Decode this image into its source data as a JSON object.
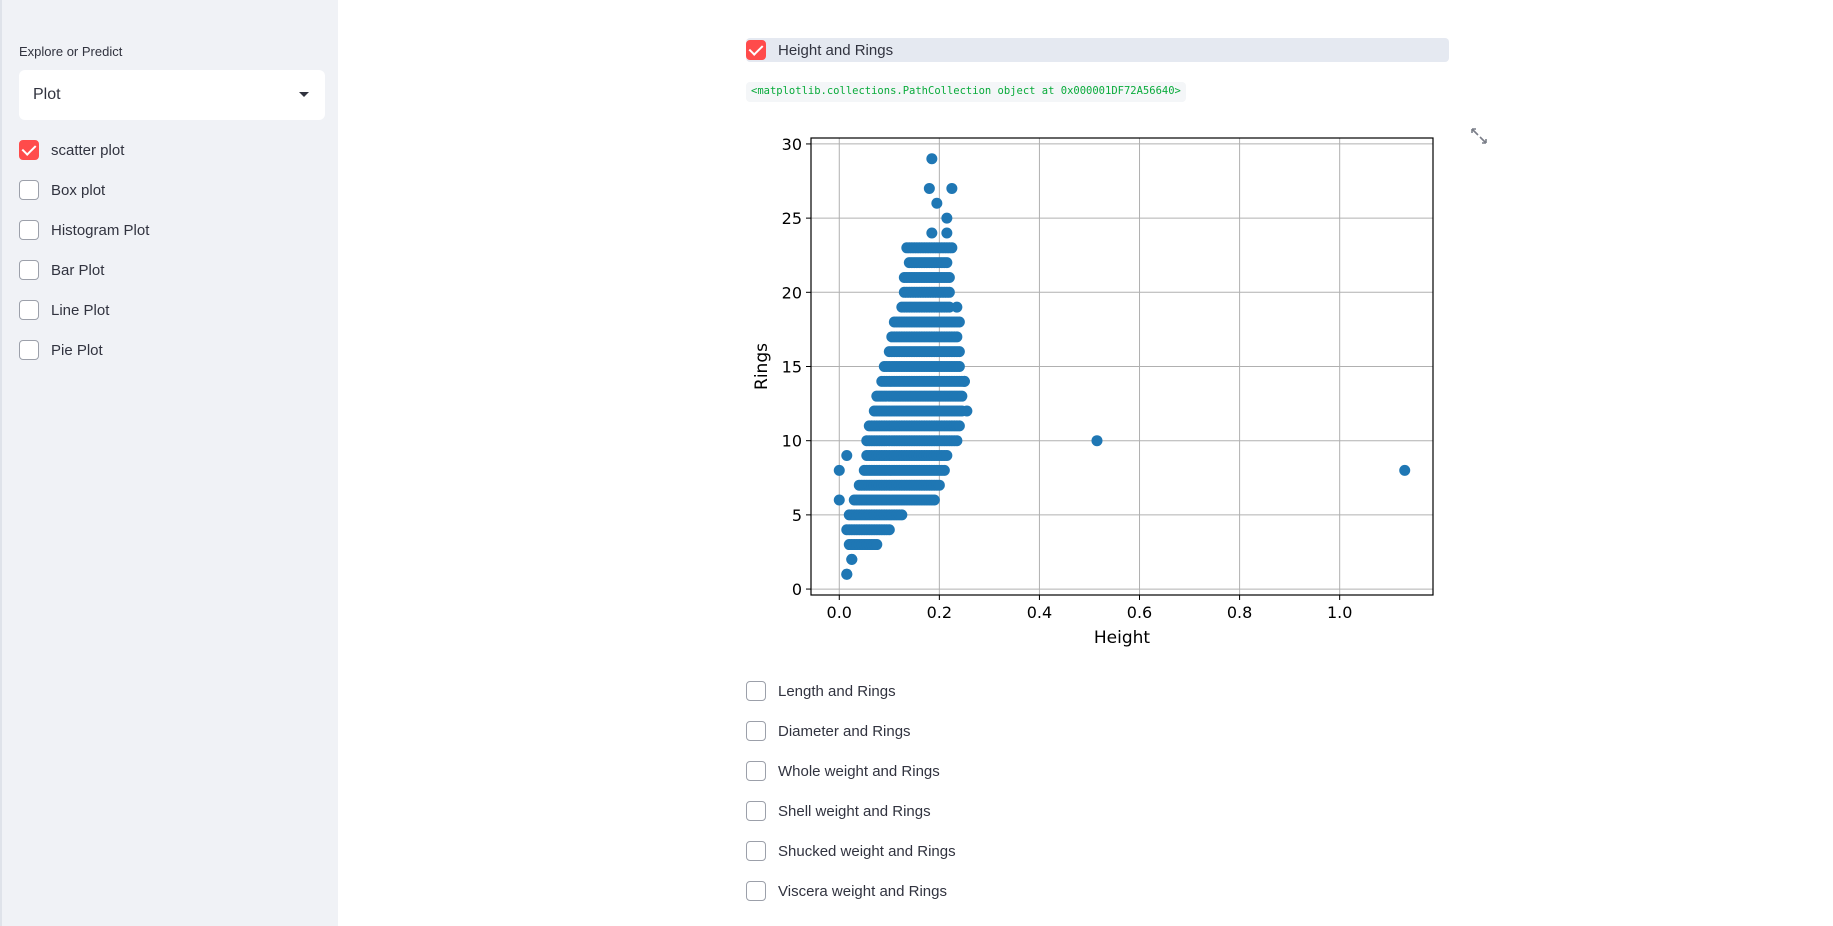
{
  "sidebar": {
    "label": "Explore or Predict",
    "select_value": "Plot",
    "plot_types": [
      {
        "label": "scatter plot",
        "checked": true
      },
      {
        "label": "Box plot",
        "checked": false
      },
      {
        "label": "Histogram Plot",
        "checked": false
      },
      {
        "label": "Bar Plot",
        "checked": false
      },
      {
        "label": "Line Plot",
        "checked": false
      },
      {
        "label": "Pie Plot",
        "checked": false
      }
    ]
  },
  "main": {
    "top_checkbox": {
      "label": "Height and Rings",
      "checked": true
    },
    "code_output": "<matplotlib.collections.PathCollection object at 0x000001DF72A56640>",
    "other_checkboxes": [
      {
        "label": "Length and Rings",
        "checked": false
      },
      {
        "label": "Diameter and Rings",
        "checked": false
      },
      {
        "label": "Whole weight and Rings",
        "checked": false
      },
      {
        "label": "Shell weight and Rings",
        "checked": false
      },
      {
        "label": "Shucked weight and Rings",
        "checked": false
      },
      {
        "label": "Viscera weight and Rings",
        "checked": false
      }
    ]
  },
  "colors": {
    "accent": "#ff4b4b",
    "point": "#1f77b4"
  },
  "chart_data": {
    "type": "scatter",
    "xlabel": "Height",
    "ylabel": "Rings",
    "xlim": [
      -0.0565,
      1.1865
    ],
    "ylim": [
      -0.4,
      30.4
    ],
    "xticks": [
      0.0,
      0.2,
      0.4,
      0.6,
      0.8,
      1.0
    ],
    "xtick_labels": [
      "0.0",
      "0.2",
      "0.4",
      "0.6",
      "0.8",
      "1.0"
    ],
    "yticks": [
      0,
      5,
      10,
      15,
      20,
      25,
      30
    ],
    "ytick_labels": [
      "0",
      "5",
      "10",
      "15",
      "20",
      "25",
      "30"
    ],
    "grid": true,
    "outliers": [
      [
        0.515,
        10
      ],
      [
        1.13,
        8
      ],
      [
        0.0,
        8
      ],
      [
        0.0,
        6
      ],
      [
        0.015,
        9
      ],
      [
        0.015,
        1
      ],
      [
        0.025,
        2
      ],
      [
        0.185,
        29
      ],
      [
        0.18,
        27
      ],
      [
        0.225,
        27
      ],
      [
        0.195,
        26
      ],
      [
        0.215,
        25
      ],
      [
        0.185,
        24
      ],
      [
        0.215,
        24
      ],
      [
        0.24,
        18
      ],
      [
        0.235,
        19
      ],
      [
        0.25,
        14
      ],
      [
        0.255,
        12
      ]
    ],
    "ranges": [
      [
        1,
        0.015,
        0.015
      ],
      [
        2,
        0.025,
        0.025
      ],
      [
        3,
        0.02,
        0.075
      ],
      [
        4,
        0.015,
        0.1
      ],
      [
        5,
        0.02,
        0.125
      ],
      [
        6,
        0.03,
        0.19
      ],
      [
        7,
        0.04,
        0.2
      ],
      [
        8,
        0.05,
        0.21
      ],
      [
        9,
        0.055,
        0.215
      ],
      [
        10,
        0.055,
        0.235
      ],
      [
        11,
        0.06,
        0.24
      ],
      [
        12,
        0.07,
        0.245
      ],
      [
        13,
        0.075,
        0.245
      ],
      [
        14,
        0.085,
        0.25
      ],
      [
        15,
        0.09,
        0.24
      ],
      [
        16,
        0.1,
        0.24
      ],
      [
        17,
        0.105,
        0.235
      ],
      [
        18,
        0.11,
        0.235
      ],
      [
        19,
        0.125,
        0.22
      ],
      [
        20,
        0.13,
        0.22
      ],
      [
        21,
        0.13,
        0.22
      ],
      [
        22,
        0.14,
        0.215
      ],
      [
        23,
        0.135,
        0.225
      ]
    ],
    "step": 0.005
  }
}
